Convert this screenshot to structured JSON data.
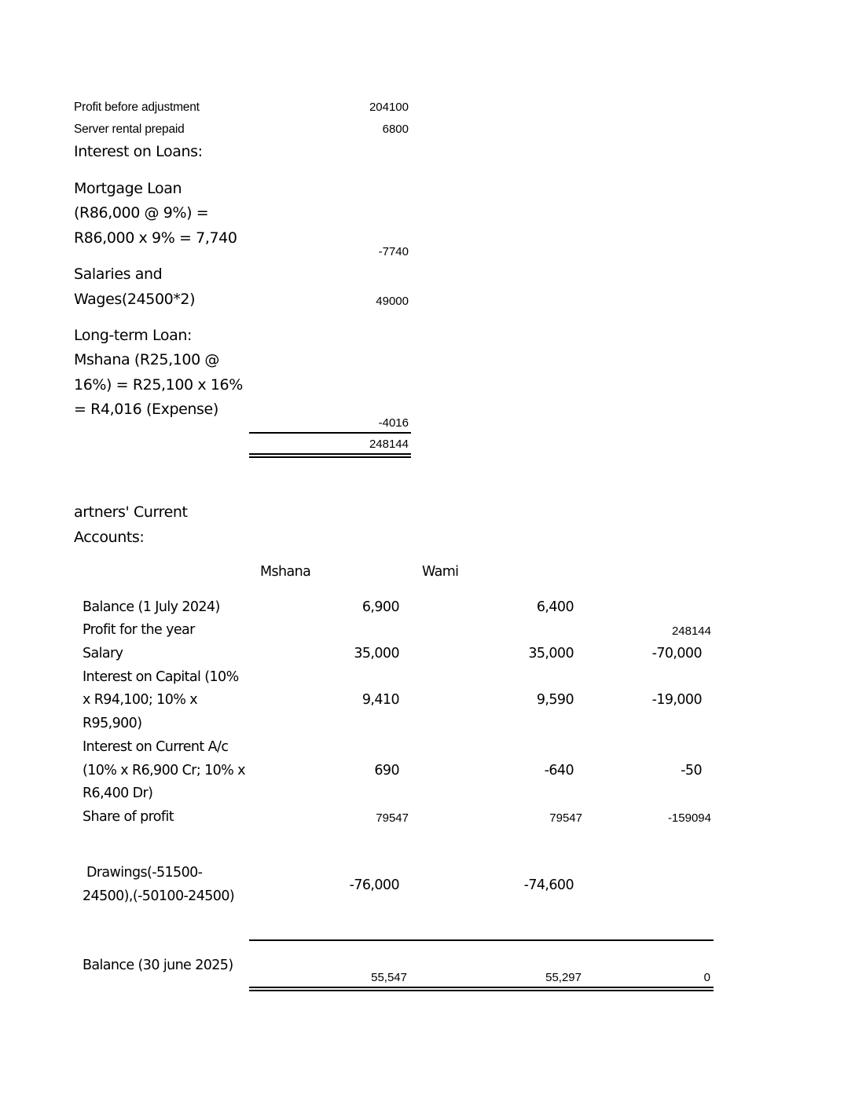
{
  "adjustments": {
    "rows": [
      {
        "label": "Profit before adjustment",
        "value": "204100"
      },
      {
        "label": "Server rental prepaid",
        "value": "6800"
      }
    ],
    "interest_heading": "Interest on Loans:",
    "mortgage": {
      "lines": [
        "Mortgage Loan",
        "(R86,000 @ 9%) =",
        "R86,000 x 9% = 7,740"
      ],
      "value": "-7740"
    },
    "salaries": {
      "lines": [
        "Salaries and",
        "Wages(24500*2)"
      ],
      "value": "49000"
    },
    "long_term": {
      "lines": [
        "Long-term Loan:",
        "Mshana (R25,100 @",
        "16%) = R25,100 x 16%",
        "= R4,016 (Expense)"
      ],
      "value": "-4016"
    },
    "total": "248144"
  },
  "current_accounts": {
    "heading_lines": [
      "artners' Current",
      "Accounts:"
    ],
    "columns": [
      "Mshana",
      "Wami"
    ],
    "rows": [
      {
        "label": [
          "Balance (1 July 2024)"
        ],
        "mshana": "6,900",
        "wami": "6,400",
        "total": ""
      },
      {
        "label": [
          "Profit for the year"
        ],
        "mshana": "",
        "wami": "",
        "total": "248144"
      },
      {
        "label": [
          "Salary"
        ],
        "mshana": "35,000",
        "wami": "35,000",
        "total": "-70,000"
      },
      {
        "label": [
          "Interest on Capital (10%",
          "x R94,100; 10% x",
          "R95,900)"
        ],
        "mshana": "9,410",
        "wami": "9,590",
        "total": "-19,000"
      },
      {
        "label": [
          "Interest on Current A/c",
          "(10% x R6,900 Cr; 10% x",
          "R6,400 Dr)"
        ],
        "mshana": "690",
        "wami": "-640",
        "total": "-50"
      },
      {
        "label": [
          "Share of profit"
        ],
        "mshana": "79547",
        "wami": "79547",
        "total": "-159094"
      },
      {
        "label": [
          " Drawings(-51500-",
          "24500),(-50100-24500)"
        ],
        "mshana": "-76,000",
        "wami": "-74,600",
        "total": ""
      }
    ],
    "closing": {
      "label": "Balance (30 june 2025)",
      "mshana": "55,547",
      "wami": "55,297",
      "total": "0"
    }
  }
}
